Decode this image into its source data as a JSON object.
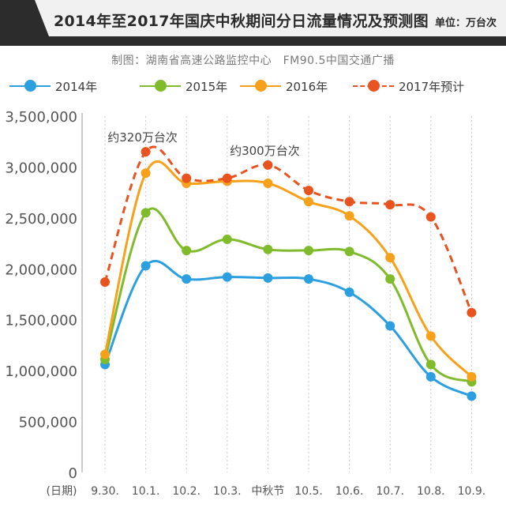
{
  "header": {
    "title": "2014年至2017年国庆中秋期间分日流量情况及预测图",
    "unit": "单位：万台次"
  },
  "source": "制图：湖南省高速公路监控中心　FM90.5中国交通广播",
  "colors": {
    "s2014": "#2c9fe0",
    "s2015": "#7fbb2a",
    "s2016": "#f7a11a",
    "s2017": "#e8531f",
    "header_dark": "#2c2c2c",
    "header_light": "#f1f1f1"
  },
  "chart_data": {
    "type": "line",
    "title": "2014年至2017年国庆中秋期间分日流量情况及预测图",
    "xlabel": "(日期)",
    "ylabel": "",
    "categories": [
      "9.30.",
      "10.1.",
      "10.2.",
      "10.3.",
      "中秋节",
      "10.5.",
      "10.6.",
      "10.7.",
      "10.8.",
      "10.9."
    ],
    "ylim": [
      0,
      3500000
    ],
    "yticks": [
      0,
      500000,
      1000000,
      1500000,
      2000000,
      2500000,
      3000000,
      3500000
    ],
    "ytick_labels": [
      "0",
      "500,000",
      "1,000,000",
      "1,500,000",
      "2,000,000",
      "2,500,000",
      "3,000,000",
      "3,500,000"
    ],
    "grid": "vertical dotted",
    "legend": "top",
    "series": [
      {
        "name": "2014年",
        "style": "solid",
        "color": "#2c9fe0",
        "values": [
          1060000,
          2030000,
          1900000,
          1920000,
          1910000,
          1900000,
          1770000,
          1440000,
          940000,
          750000
        ]
      },
      {
        "name": "2015年",
        "style": "solid",
        "color": "#7fbb2a",
        "values": [
          1110000,
          2550000,
          2180000,
          2290000,
          2190000,
          2180000,
          2170000,
          1900000,
          1060000,
          890000
        ]
      },
      {
        "name": "2016年",
        "style": "solid",
        "color": "#f7a11a",
        "values": [
          1160000,
          2940000,
          2840000,
          2860000,
          2840000,
          2660000,
          2520000,
          2110000,
          1340000,
          940000
        ]
      },
      {
        "name": "2017年预计",
        "style": "dashed",
        "color": "#e8531f",
        "values": [
          1870000,
          3150000,
          2890000,
          2890000,
          3020000,
          2770000,
          2660000,
          2630000,
          2510000,
          1570000
        ]
      }
    ],
    "annotations": [
      {
        "text": "约320万台次",
        "category_index": 1,
        "y": 3150000
      },
      {
        "text": "约300万台次",
        "category_index": 4,
        "y": 3020000
      }
    ]
  }
}
